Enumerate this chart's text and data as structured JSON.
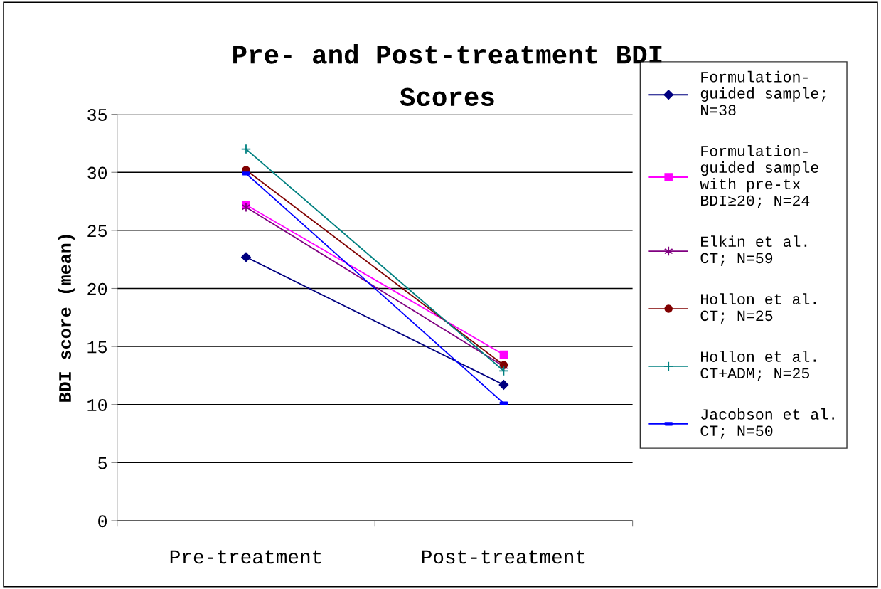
{
  "chart_data": {
    "type": "line",
    "title": "Pre- and Post-treatment BDI\nScores",
    "ylabel": "BDI score (mean)",
    "categories": [
      "Pre-treatment",
      "Post-treatment"
    ],
    "series": [
      {
        "name": "Formulation-\nguided sample;\nN=38",
        "color": "#000080",
        "marker": "diamond",
        "values": [
          22.7,
          11.7
        ]
      },
      {
        "name": "Formulation-\nguided sample\nwith pre-tx\nBDI≥20; N=24",
        "color": "#ff00ff",
        "marker": "square",
        "values": [
          27.2,
          14.3
        ]
      },
      {
        "name": "Elkin et al.\nCT; N=59",
        "color": "#800080",
        "marker": "cross",
        "values": [
          27.0,
          13.3
        ]
      },
      {
        "name": "Hollon et al.\nCT; N=25",
        "color": "#800000",
        "marker": "circle",
        "values": [
          30.2,
          13.4
        ]
      },
      {
        "name": "Hollon et al.\nCT+ADM; N=25",
        "color": "#008080",
        "marker": "cross",
        "values": [
          32.0,
          12.9
        ]
      },
      {
        "name": "Jacobson et al.\nCT; N=50",
        "color": "#0000ff",
        "marker": "square",
        "values": [
          29.9,
          10.1
        ]
      }
    ],
    "ylim": [
      0,
      35
    ],
    "yticks": [
      0,
      5,
      10,
      15,
      20,
      25,
      30,
      35
    ],
    "grid": "y",
    "legend": "right",
    "line_style": "solid"
  }
}
